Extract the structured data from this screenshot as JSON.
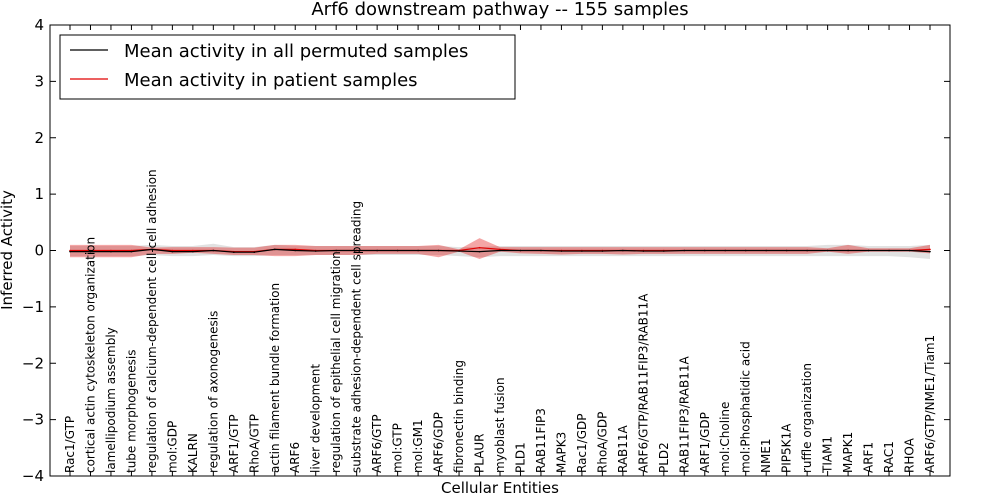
{
  "chart_data": {
    "type": "line",
    "title": "Arf6 downstream pathway -- 155 samples",
    "xlabel": "Cellular Entities",
    "ylabel": "Inferred Activity",
    "ylim": [
      -4,
      4
    ],
    "yticks": [
      4,
      3,
      2,
      1,
      0,
      -1,
      -2,
      -3,
      -4
    ],
    "ytick_labels": [
      "4",
      "3",
      "2",
      "1",
      "0",
      "−1",
      "−2",
      "−3",
      "−4"
    ],
    "legend": {
      "position": "top-left",
      "entries": [
        {
          "label": "Mean activity in all permuted samples",
          "color": "#000000"
        },
        {
          "label": "Mean activity in patient samples",
          "color": "#e00000"
        }
      ]
    },
    "categories": [
      "Rac1/GTP",
      "cortical actin cytoskeleton organization",
      "lamellipodium assembly",
      "tube morphogenesis",
      "regulation of calcium-dependent cell-cell adhesion",
      "mol:GDP",
      "KALRN",
      "regulation of axonogenesis",
      "ARF1/GTP",
      "RhoA/GTP",
      "actin filament bundle formation",
      "ARF6",
      "liver development",
      "regulation of epithelial cell migration",
      "substrate adhesion-dependent cell spreading",
      "ARF6/GTP",
      "mol:GTP",
      "mol:GM1",
      "ARF6/GDP",
      "fibronectin binding",
      "PLAUR",
      "myoblast fusion",
      "PLD1",
      "RAB11FIP3",
      "MAPK3",
      "Rac1/GDP",
      "RhoA/GDP",
      "RAB11A",
      "ARF6/GTP/RAB11FIP3/RAB11A",
      "PLD2",
      "RAB11FIP3/RAB11A",
      "ARF1/GDP",
      "mol:Choline",
      "mol:Phosphatidic acid",
      "NME1",
      "PIP5K1A",
      "ruffle organization",
      "TIAM1",
      "MAPK1",
      "ARF1",
      "RAC1",
      "RHOA",
      "ARF6/GTP/NME1/Tiam1"
    ],
    "series": [
      {
        "name": "Mean activity in all permuted samples",
        "color": "#000000",
        "values": [
          -0.02,
          -0.02,
          -0.02,
          -0.02,
          0.02,
          -0.02,
          -0.02,
          0.0,
          -0.03,
          -0.03,
          0.02,
          0.0,
          -0.01,
          0.0,
          0.0,
          0.0,
          0.0,
          0.0,
          0.0,
          -0.01,
          -0.02,
          0.0,
          0.0,
          0.0,
          -0.01,
          -0.01,
          -0.01,
          0.0,
          -0.01,
          -0.01,
          0.0,
          0.0,
          0.0,
          0.0,
          0.0,
          0.0,
          0.0,
          0.0,
          0.0,
          0.0,
          0.0,
          0.0,
          -0.02
        ],
        "lower": [
          -0.1,
          -0.1,
          -0.1,
          -0.1,
          -0.08,
          -0.1,
          -0.1,
          -0.08,
          -0.1,
          -0.1,
          -0.08,
          -0.08,
          -0.08,
          -0.08,
          -0.08,
          -0.08,
          -0.08,
          -0.08,
          -0.08,
          -0.1,
          -0.12,
          -0.1,
          -0.1,
          -0.1,
          -0.1,
          -0.1,
          -0.1,
          -0.1,
          -0.1,
          -0.1,
          -0.1,
          -0.1,
          -0.1,
          -0.1,
          -0.1,
          -0.1,
          -0.1,
          -0.1,
          -0.1,
          -0.1,
          -0.1,
          -0.12,
          -0.15
        ],
        "upper": [
          0.08,
          0.08,
          0.08,
          0.08,
          0.1,
          0.08,
          0.08,
          0.12,
          0.06,
          0.06,
          0.1,
          0.08,
          0.08,
          0.08,
          0.08,
          0.08,
          0.08,
          0.08,
          0.08,
          0.06,
          0.06,
          0.08,
          0.08,
          0.08,
          0.08,
          0.08,
          0.08,
          0.08,
          0.08,
          0.08,
          0.08,
          0.08,
          0.08,
          0.08,
          0.08,
          0.08,
          0.08,
          0.1,
          0.1,
          0.08,
          0.08,
          0.08,
          0.1
        ]
      },
      {
        "name": "Mean activity in patient samples",
        "color": "#e00000",
        "values": [
          0.0,
          0.0,
          0.0,
          0.0,
          0.02,
          0.0,
          0.0,
          0.0,
          -0.02,
          -0.02,
          0.02,
          0.02,
          0.0,
          0.0,
          0.0,
          0.0,
          0.0,
          0.0,
          0.0,
          0.0,
          0.05,
          0.02,
          0.0,
          0.0,
          0.0,
          0.0,
          0.0,
          0.0,
          0.0,
          0.0,
          0.0,
          0.0,
          0.0,
          0.0,
          0.0,
          0.0,
          0.0,
          0.0,
          0.0,
          0.0,
          0.0,
          0.0,
          0.02
        ],
        "lower": [
          -0.12,
          -0.12,
          -0.12,
          -0.12,
          -0.06,
          -0.06,
          -0.04,
          -0.06,
          -0.08,
          -0.08,
          -0.1,
          -0.1,
          -0.08,
          -0.08,
          -0.08,
          -0.06,
          -0.06,
          -0.06,
          -0.12,
          -0.02,
          -0.15,
          -0.02,
          -0.05,
          -0.06,
          -0.07,
          -0.06,
          -0.06,
          -0.07,
          -0.06,
          -0.06,
          -0.06,
          -0.06,
          -0.06,
          -0.06,
          -0.06,
          -0.06,
          -0.06,
          -0.02,
          -0.06,
          -0.02,
          -0.02,
          -0.02,
          -0.05
        ],
        "upper": [
          0.1,
          0.1,
          0.1,
          0.1,
          0.05,
          0.06,
          0.06,
          0.06,
          0.05,
          0.05,
          0.1,
          0.1,
          0.08,
          0.08,
          0.08,
          0.08,
          0.08,
          0.08,
          0.1,
          0.02,
          0.22,
          0.06,
          0.06,
          0.06,
          0.06,
          0.06,
          0.06,
          0.06,
          0.06,
          0.06,
          0.06,
          0.06,
          0.06,
          0.06,
          0.06,
          0.06,
          0.06,
          0.04,
          0.1,
          0.04,
          0.04,
          0.04,
          0.1
        ]
      }
    ]
  }
}
